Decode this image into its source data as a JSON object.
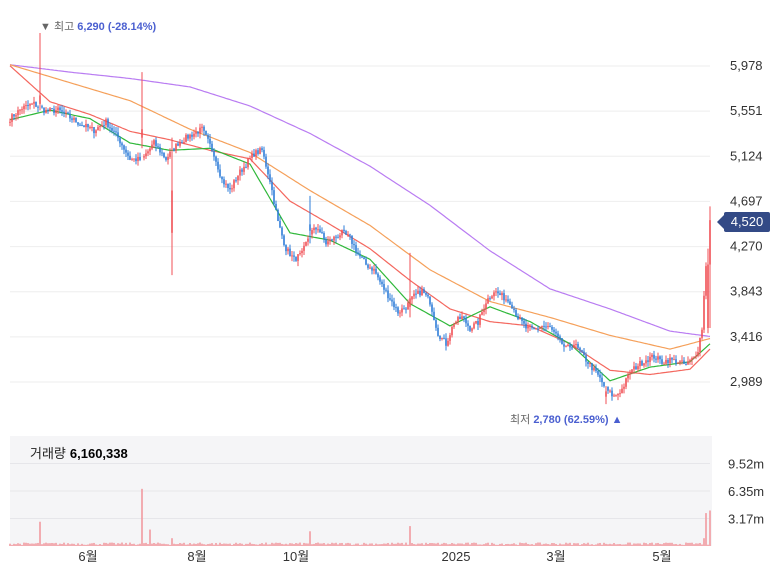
{
  "chart_data": {
    "type": "candlestick",
    "price_axis": {
      "ticks": [
        5978,
        5551,
        5124,
        4697,
        4270,
        3843,
        3416,
        2989
      ],
      "range": [
        2780,
        6290
      ]
    },
    "volume_axis": {
      "ticks": [
        "9.52m",
        "6.35m",
        "3.17m"
      ],
      "range": [
        0,
        12700000
      ]
    },
    "x_axis": {
      "labels": [
        "6월",
        "8월",
        "10월",
        "2025",
        "3월",
        "5월"
      ]
    },
    "annotations": {
      "high": {
        "label": "최고",
        "value": "6,290",
        "change": "(-28.14%)",
        "arrow": "▼"
      },
      "low": {
        "label": "최저",
        "value": "2,780",
        "change": "(62.59%)",
        "arrow": "▲"
      }
    },
    "current_price": "4,520",
    "volume_title": {
      "label": "거래량",
      "value": "6,160,338"
    },
    "close_waypoints": [
      [
        0,
        5480
      ],
      [
        6,
        5580
      ],
      [
        12,
        5620
      ],
      [
        18,
        5550
      ],
      [
        24,
        5560
      ],
      [
        30,
        5490
      ],
      [
        36,
        5420
      ],
      [
        42,
        5370
      ],
      [
        48,
        5450
      ],
      [
        54,
        5300
      ],
      [
        60,
        5100
      ],
      [
        66,
        5090
      ],
      [
        72,
        5250
      ],
      [
        78,
        5100
      ],
      [
        84,
        5250
      ],
      [
        90,
        5320
      ],
      [
        96,
        5380
      ],
      [
        102,
        5150
      ],
      [
        106,
        4900
      ],
      [
        110,
        4800
      ],
      [
        114,
        4950
      ],
      [
        118,
        5050
      ],
      [
        122,
        5150
      ],
      [
        126,
        5180
      ],
      [
        130,
        4900
      ],
      [
        134,
        4500
      ],
      [
        138,
        4250
      ],
      [
        142,
        4150
      ],
      [
        146,
        4200
      ],
      [
        150,
        4400
      ],
      [
        154,
        4450
      ],
      [
        158,
        4300
      ],
      [
        162,
        4350
      ],
      [
        166,
        4400
      ],
      [
        170,
        4350
      ],
      [
        174,
        4200
      ],
      [
        178,
        4100
      ],
      [
        182,
        4050
      ],
      [
        186,
        3900
      ],
      [
        190,
        3780
      ],
      [
        194,
        3650
      ],
      [
        198,
        3700
      ],
      [
        202,
        3800
      ],
      [
        206,
        3850
      ],
      [
        210,
        3750
      ],
      [
        214,
        3450
      ],
      [
        218,
        3350
      ],
      [
        222,
        3550
      ],
      [
        226,
        3600
      ],
      [
        230,
        3500
      ],
      [
        234,
        3550
      ],
      [
        238,
        3750
      ],
      [
        242,
        3850
      ],
      [
        246,
        3800
      ],
      [
        250,
        3750
      ],
      [
        254,
        3600
      ],
      [
        258,
        3500
      ],
      [
        262,
        3480
      ],
      [
        266,
        3520
      ],
      [
        270,
        3500
      ],
      [
        274,
        3400
      ],
      [
        278,
        3300
      ],
      [
        282,
        3350
      ],
      [
        286,
        3250
      ],
      [
        290,
        3150
      ],
      [
        294,
        3050
      ],
      [
        298,
        2920
      ],
      [
        302,
        2850
      ],
      [
        306,
        2920
      ],
      [
        310,
        3080
      ],
      [
        314,
        3150
      ],
      [
        318,
        3200
      ],
      [
        322,
        3230
      ],
      [
        326,
        3180
      ],
      [
        330,
        3200
      ],
      [
        334,
        3180
      ],
      [
        338,
        3150
      ],
      [
        342,
        3220
      ],
      [
        344,
        3300
      ],
      [
        346,
        3500
      ],
      [
        348,
        4100
      ],
      [
        350,
        4520
      ]
    ],
    "ma_short_waypoints": [
      [
        0,
        5470
      ],
      [
        20,
        5560
      ],
      [
        40,
        5480
      ],
      [
        60,
        5250
      ],
      [
        80,
        5180
      ],
      [
        100,
        5200
      ],
      [
        120,
        5050
      ],
      [
        140,
        4400
      ],
      [
        160,
        4330
      ],
      [
        180,
        4150
      ],
      [
        200,
        3730
      ],
      [
        220,
        3520
      ],
      [
        240,
        3700
      ],
      [
        260,
        3560
      ],
      [
        280,
        3350
      ],
      [
        300,
        3000
      ],
      [
        320,
        3130
      ],
      [
        340,
        3180
      ],
      [
        350,
        3350
      ]
    ],
    "ma_mid_waypoints": [
      [
        0,
        5980
      ],
      [
        20,
        5640
      ],
      [
        40,
        5520
      ],
      [
        60,
        5360
      ],
      [
        80,
        5280
      ],
      [
        100,
        5180
      ],
      [
        120,
        5100
      ],
      [
        140,
        4700
      ],
      [
        160,
        4480
      ],
      [
        180,
        4250
      ],
      [
        200,
        3950
      ],
      [
        220,
        3680
      ],
      [
        240,
        3560
      ],
      [
        260,
        3520
      ],
      [
        280,
        3350
      ],
      [
        300,
        3100
      ],
      [
        320,
        3060
      ],
      [
        340,
        3110
      ],
      [
        350,
        3300
      ]
    ],
    "ma_long_waypoints": [
      [
        0,
        5990
      ],
      [
        30,
        5820
      ],
      [
        60,
        5650
      ],
      [
        90,
        5380
      ],
      [
        120,
        5160
      ],
      [
        150,
        4800
      ],
      [
        180,
        4470
      ],
      [
        210,
        4050
      ],
      [
        240,
        3750
      ],
      [
        270,
        3600
      ],
      [
        300,
        3430
      ],
      [
        330,
        3300
      ],
      [
        350,
        3400
      ]
    ],
    "ma_xlong_waypoints": [
      [
        0,
        5990
      ],
      [
        30,
        5920
      ],
      [
        60,
        5860
      ],
      [
        90,
        5780
      ],
      [
        120,
        5600
      ],
      [
        150,
        5340
      ],
      [
        180,
        5030
      ],
      [
        210,
        4660
      ],
      [
        240,
        4230
      ],
      [
        270,
        3870
      ],
      [
        300,
        3680
      ],
      [
        330,
        3470
      ],
      [
        350,
        3420
      ]
    ],
    "volume_spikes": [
      [
        15,
        2800000
      ],
      [
        66,
        6600000
      ],
      [
        70,
        1900000
      ],
      [
        81,
        900000
      ],
      [
        95,
        400000
      ],
      [
        150,
        1700000
      ],
      [
        200,
        2300000
      ],
      [
        347,
        900000
      ],
      [
        348,
        3800000
      ],
      [
        350,
        4100000
      ]
    ],
    "colors": {
      "up": "#f04f55",
      "down": "#2e7dd8",
      "ma_short": "#2fb83a",
      "ma_mid": "#f4675e",
      "ma_long": "#f5a05a",
      "ma_xlong": "#b97cf2",
      "volume": "#f29aa0",
      "badge": "#334a86"
    }
  }
}
